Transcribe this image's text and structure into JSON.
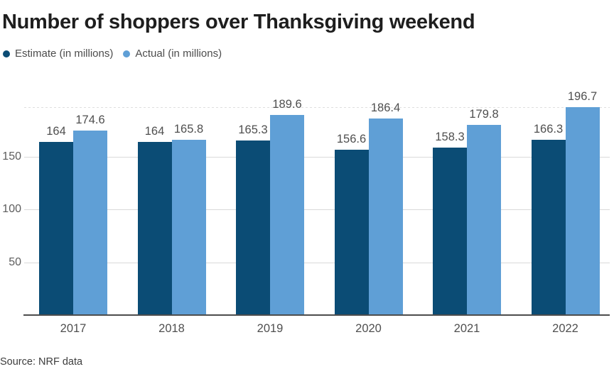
{
  "title": "Number of shoppers over Thanksgiving weekend",
  "source": "Source: NRF data",
  "colors": {
    "estimate": "#0b4c75",
    "actual": "#5f9fd6",
    "gridline": "#d9d9d9",
    "axis": "#4d4d4d",
    "label_gray": "#4f4f4f"
  },
  "legend": [
    {
      "label": "Estimate (in millions)",
      "color": "#0b4c75"
    },
    {
      "label": "Actual (in millions)",
      "color": "#5f9fd6"
    }
  ],
  "chart_data": {
    "type": "bar",
    "title": "Number of shoppers over Thanksgiving weekend",
    "categories": [
      "2017",
      "2018",
      "2019",
      "2020",
      "2021",
      "2022"
    ],
    "series": [
      {
        "name": "Estimate (in millions)",
        "color": "#0b4c75",
        "values": [
          164,
          164,
          165.3,
          156.6,
          158.3,
          166.3
        ]
      },
      {
        "name": "Actual (in millions)",
        "color": "#5f9fd6",
        "values": [
          174.6,
          165.8,
          189.6,
          186.4,
          179.8,
          196.7
        ]
      }
    ],
    "xlabel": "",
    "ylabel": "",
    "y_ticks": [
      50,
      100,
      150
    ],
    "ylim": [
      0,
      196.7
    ],
    "grid": true,
    "max_reference_line": 196.7,
    "value_labels": true,
    "legend_position": "top",
    "source": "Source: NRF data"
  }
}
